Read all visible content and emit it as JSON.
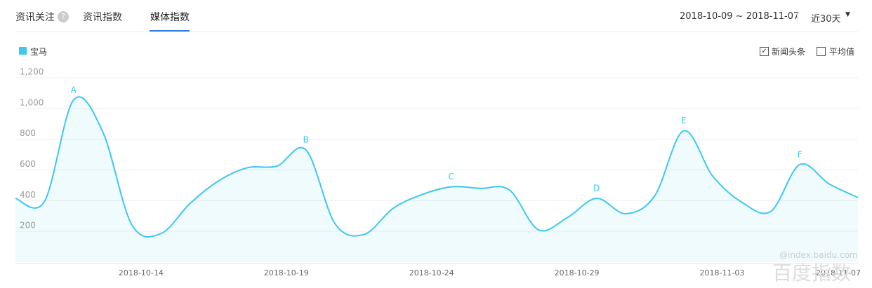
{
  "ui": {
    "section": "资讯关注",
    "help": "?",
    "tabs": [
      "资讯指数",
      "媒体指数"
    ],
    "date_range": "2018-10-09 ~ 2018-11-07",
    "period": "近30天",
    "options": [
      "新闻头条",
      "平均值"
    ],
    "watermark": "@index.baidu.com",
    "brand": "百度指数"
  },
  "chart_data": {
    "type": "line",
    "categories": [
      null,
      null,
      null,
      null,
      null,
      "2018-10-14",
      null,
      null,
      null,
      null,
      "2018-10-19",
      null,
      null,
      null,
      null,
      "2018-10-24",
      null,
      null,
      null,
      null,
      "2018-10-29",
      null,
      null,
      null,
      null,
      "2018-11-03",
      null,
      null,
      null,
      "2018-11-07"
    ],
    "series": [
      {
        "name": "宝马",
        "color": "#3ec7f0",
        "values": [
          415,
          395,
          1055,
          850,
          245,
          185,
          380,
          530,
          615,
          625,
          730,
          250,
          180,
          350,
          440,
          490,
          480,
          470,
          210,
          290,
          415,
          315,
          430,
          855,
          560,
          390,
          330,
          635,
          510,
          420
        ],
        "point_labels": [
          null,
          null,
          "A",
          null,
          null,
          null,
          null,
          null,
          null,
          null,
          "B",
          null,
          null,
          null,
          null,
          "C",
          null,
          null,
          null,
          null,
          "D",
          null,
          null,
          "E",
          null,
          null,
          null,
          "F",
          null,
          null
        ]
      }
    ],
    "ylim": [
      0,
      1200
    ],
    "yticks": [
      200,
      400,
      600,
      800,
      {
        "value": 1000,
        "label": "1,000"
      },
      {
        "value": 1200,
        "label": "1,200"
      }
    ],
    "grid": true
  }
}
